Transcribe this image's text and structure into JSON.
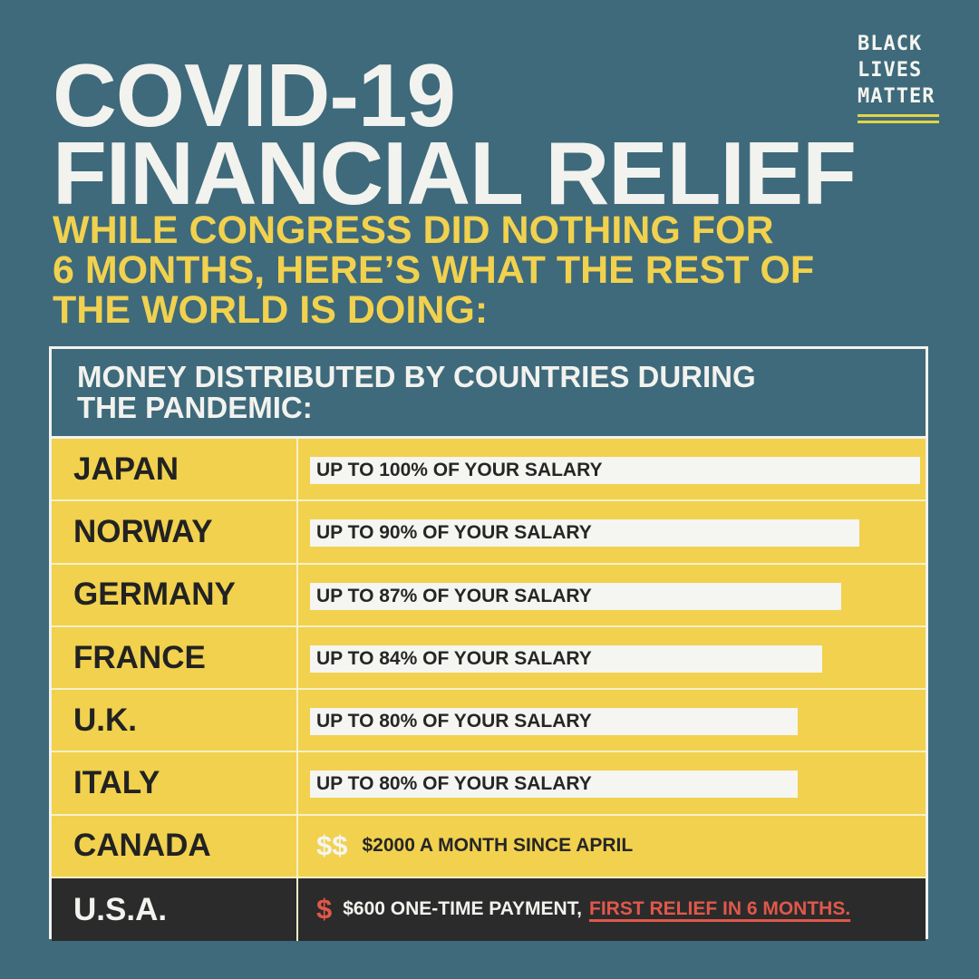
{
  "title_lines": [
    "COVID-19",
    "FINANCIAL RELIEF"
  ],
  "subtitle_lines": [
    "WHILE CONGRESS DID NOTHING FOR",
    "6 MONTHS, HERE’S WHAT THE REST OF",
    "THE WORLD IS DOING:"
  ],
  "logo_lines": [
    "BLACK",
    "LIVES",
    "MATTER"
  ],
  "colors": {
    "background": "#3e6a7b",
    "accent_yellow": "#f1d14e",
    "usa_row": "#2b2b2b",
    "alert_red": "#e0584a"
  },
  "chart_data": {
    "type": "bar",
    "title_lines": [
      "MONEY DISTRIBUTED BY COUNTRIES DURING",
      "THE PANDEMIC:"
    ],
    "unit": "% of salary",
    "categories": [
      "JAPAN",
      "NORWAY",
      "GERMANY",
      "FRANCE",
      "U.K.",
      "ITALY"
    ],
    "values": [
      100,
      90,
      87,
      84,
      80,
      80
    ],
    "labels": [
      "UP TO 100% OF YOUR SALARY",
      "UP TO 90% OF YOUR SALARY",
      "UP TO 87% OF YOUR SALARY",
      "UP TO 84% OF YOUR SALARY",
      "UP TO 80% OF YOUR SALARY",
      "UP TO 80% OF YOUR SALARY"
    ],
    "extra_rows": [
      {
        "country": "CANADA",
        "icon": "$$",
        "text": "$2000 A MONTH SINCE APRIL",
        "emphasis": ""
      },
      {
        "country": "U.S.A.",
        "icon": "$",
        "text": "$600 ONE-TIME PAYMENT,",
        "emphasis": "FIRST RELIEF IN 6 MONTHS."
      }
    ]
  }
}
